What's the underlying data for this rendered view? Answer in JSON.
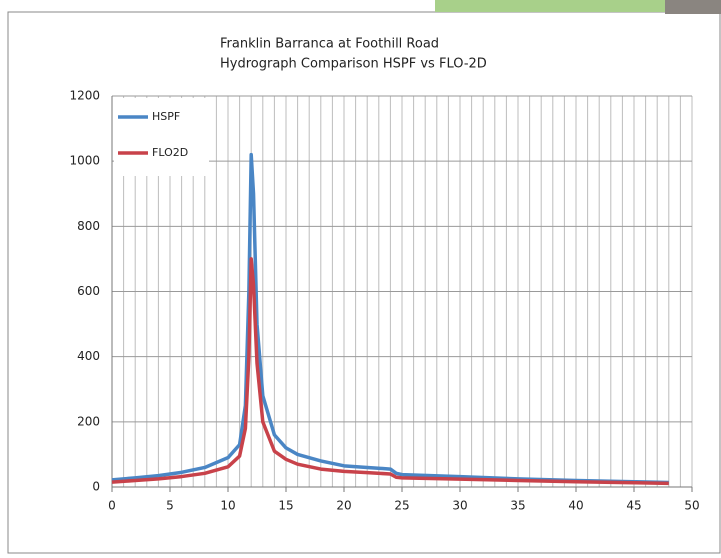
{
  "chart_data": {
    "type": "line",
    "title": [
      "Franklin Barranca at Foothill Road",
      "Hydrograph Comparison HSPF vs FLO-2D"
    ],
    "x": [
      0,
      2,
      4,
      6,
      8,
      10,
      11,
      11.5,
      11.8,
      12,
      12.2,
      12.5,
      13,
      14,
      15,
      16,
      18,
      20,
      22,
      24,
      24.5,
      25,
      30,
      35,
      40,
      45,
      48
    ],
    "series": [
      {
        "name": "HSPF",
        "color": "#4a86c5",
        "values": [
          22,
          28,
          35,
          45,
          60,
          90,
          130,
          250,
          600,
          1020,
          900,
          500,
          280,
          160,
          120,
          100,
          80,
          65,
          60,
          55,
          42,
          38,
          32,
          25,
          20,
          16,
          14
        ]
      },
      {
        "name": "FLO2D",
        "color": "#c8424a",
        "values": [
          15,
          20,
          25,
          32,
          42,
          62,
          95,
          180,
          400,
          700,
          620,
          380,
          200,
          110,
          85,
          70,
          55,
          48,
          44,
          40,
          30,
          28,
          24,
          20,
          16,
          13,
          11
        ]
      }
    ],
    "xlim": [
      0,
      50
    ],
    "xticks": [
      0,
      5,
      10,
      15,
      20,
      25,
      30,
      35,
      40,
      45,
      50
    ],
    "xgrid": [
      0,
      1,
      2,
      3,
      4,
      5,
      6,
      7,
      8,
      9,
      10,
      11,
      12,
      13,
      14,
      15,
      16,
      17,
      18,
      19,
      20,
      21,
      22,
      23,
      24,
      25,
      26,
      27,
      28,
      29,
      30,
      31,
      32,
      33,
      34,
      35,
      36,
      37,
      38,
      39,
      40,
      41,
      42,
      43,
      44,
      45,
      46,
      47,
      48,
      49,
      50
    ],
    "ylim": [
      0,
      1200
    ],
    "yticks": [
      0,
      200,
      400,
      600,
      800,
      1000,
      1200
    ],
    "grid": true,
    "legend": "top-left"
  }
}
